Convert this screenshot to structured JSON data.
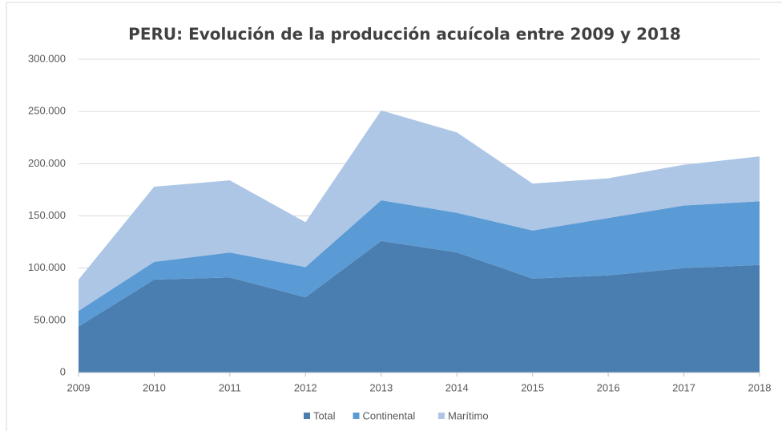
{
  "chart_data": {
    "type": "stacked_area",
    "title": "PERU: Evolución de la producción acuícola entre 2009 y 2018",
    "categories": [
      "2009",
      "2010",
      "2011",
      "2012",
      "2013",
      "2014",
      "2015",
      "2016",
      "2017",
      "2018"
    ],
    "series": [
      {
        "name": "Total",
        "color": "#4a7eb0",
        "values": [
          44000,
          89000,
          91000,
          72000,
          126000,
          115000,
          90000,
          93000,
          100000,
          103000
        ]
      },
      {
        "name": "Continental",
        "color": "#5b9bd5",
        "values": [
          15000,
          17000,
          24000,
          29000,
          39000,
          38000,
          46000,
          55000,
          60000,
          61000
        ]
      },
      {
        "name": "Marítimo",
        "color": "#adc6e6",
        "values": [
          30000,
          72000,
          69000,
          43000,
          86000,
          77000,
          45000,
          38000,
          39000,
          43000
        ]
      }
    ],
    "ylim": [
      0,
      300000
    ],
    "yticks": [
      0,
      {
        "value": 50000,
        "label": "50.000"
      },
      {
        "value": 100000,
        "label": "100.000"
      },
      {
        "value": 150000,
        "label": "150.000"
      },
      {
        "value": 200000,
        "label": "200.000"
      },
      {
        "value": 250000,
        "label": "250.000"
      },
      {
        "value": 300000,
        "label": "300.000"
      }
    ],
    "grid": true,
    "legend": "bottom"
  }
}
